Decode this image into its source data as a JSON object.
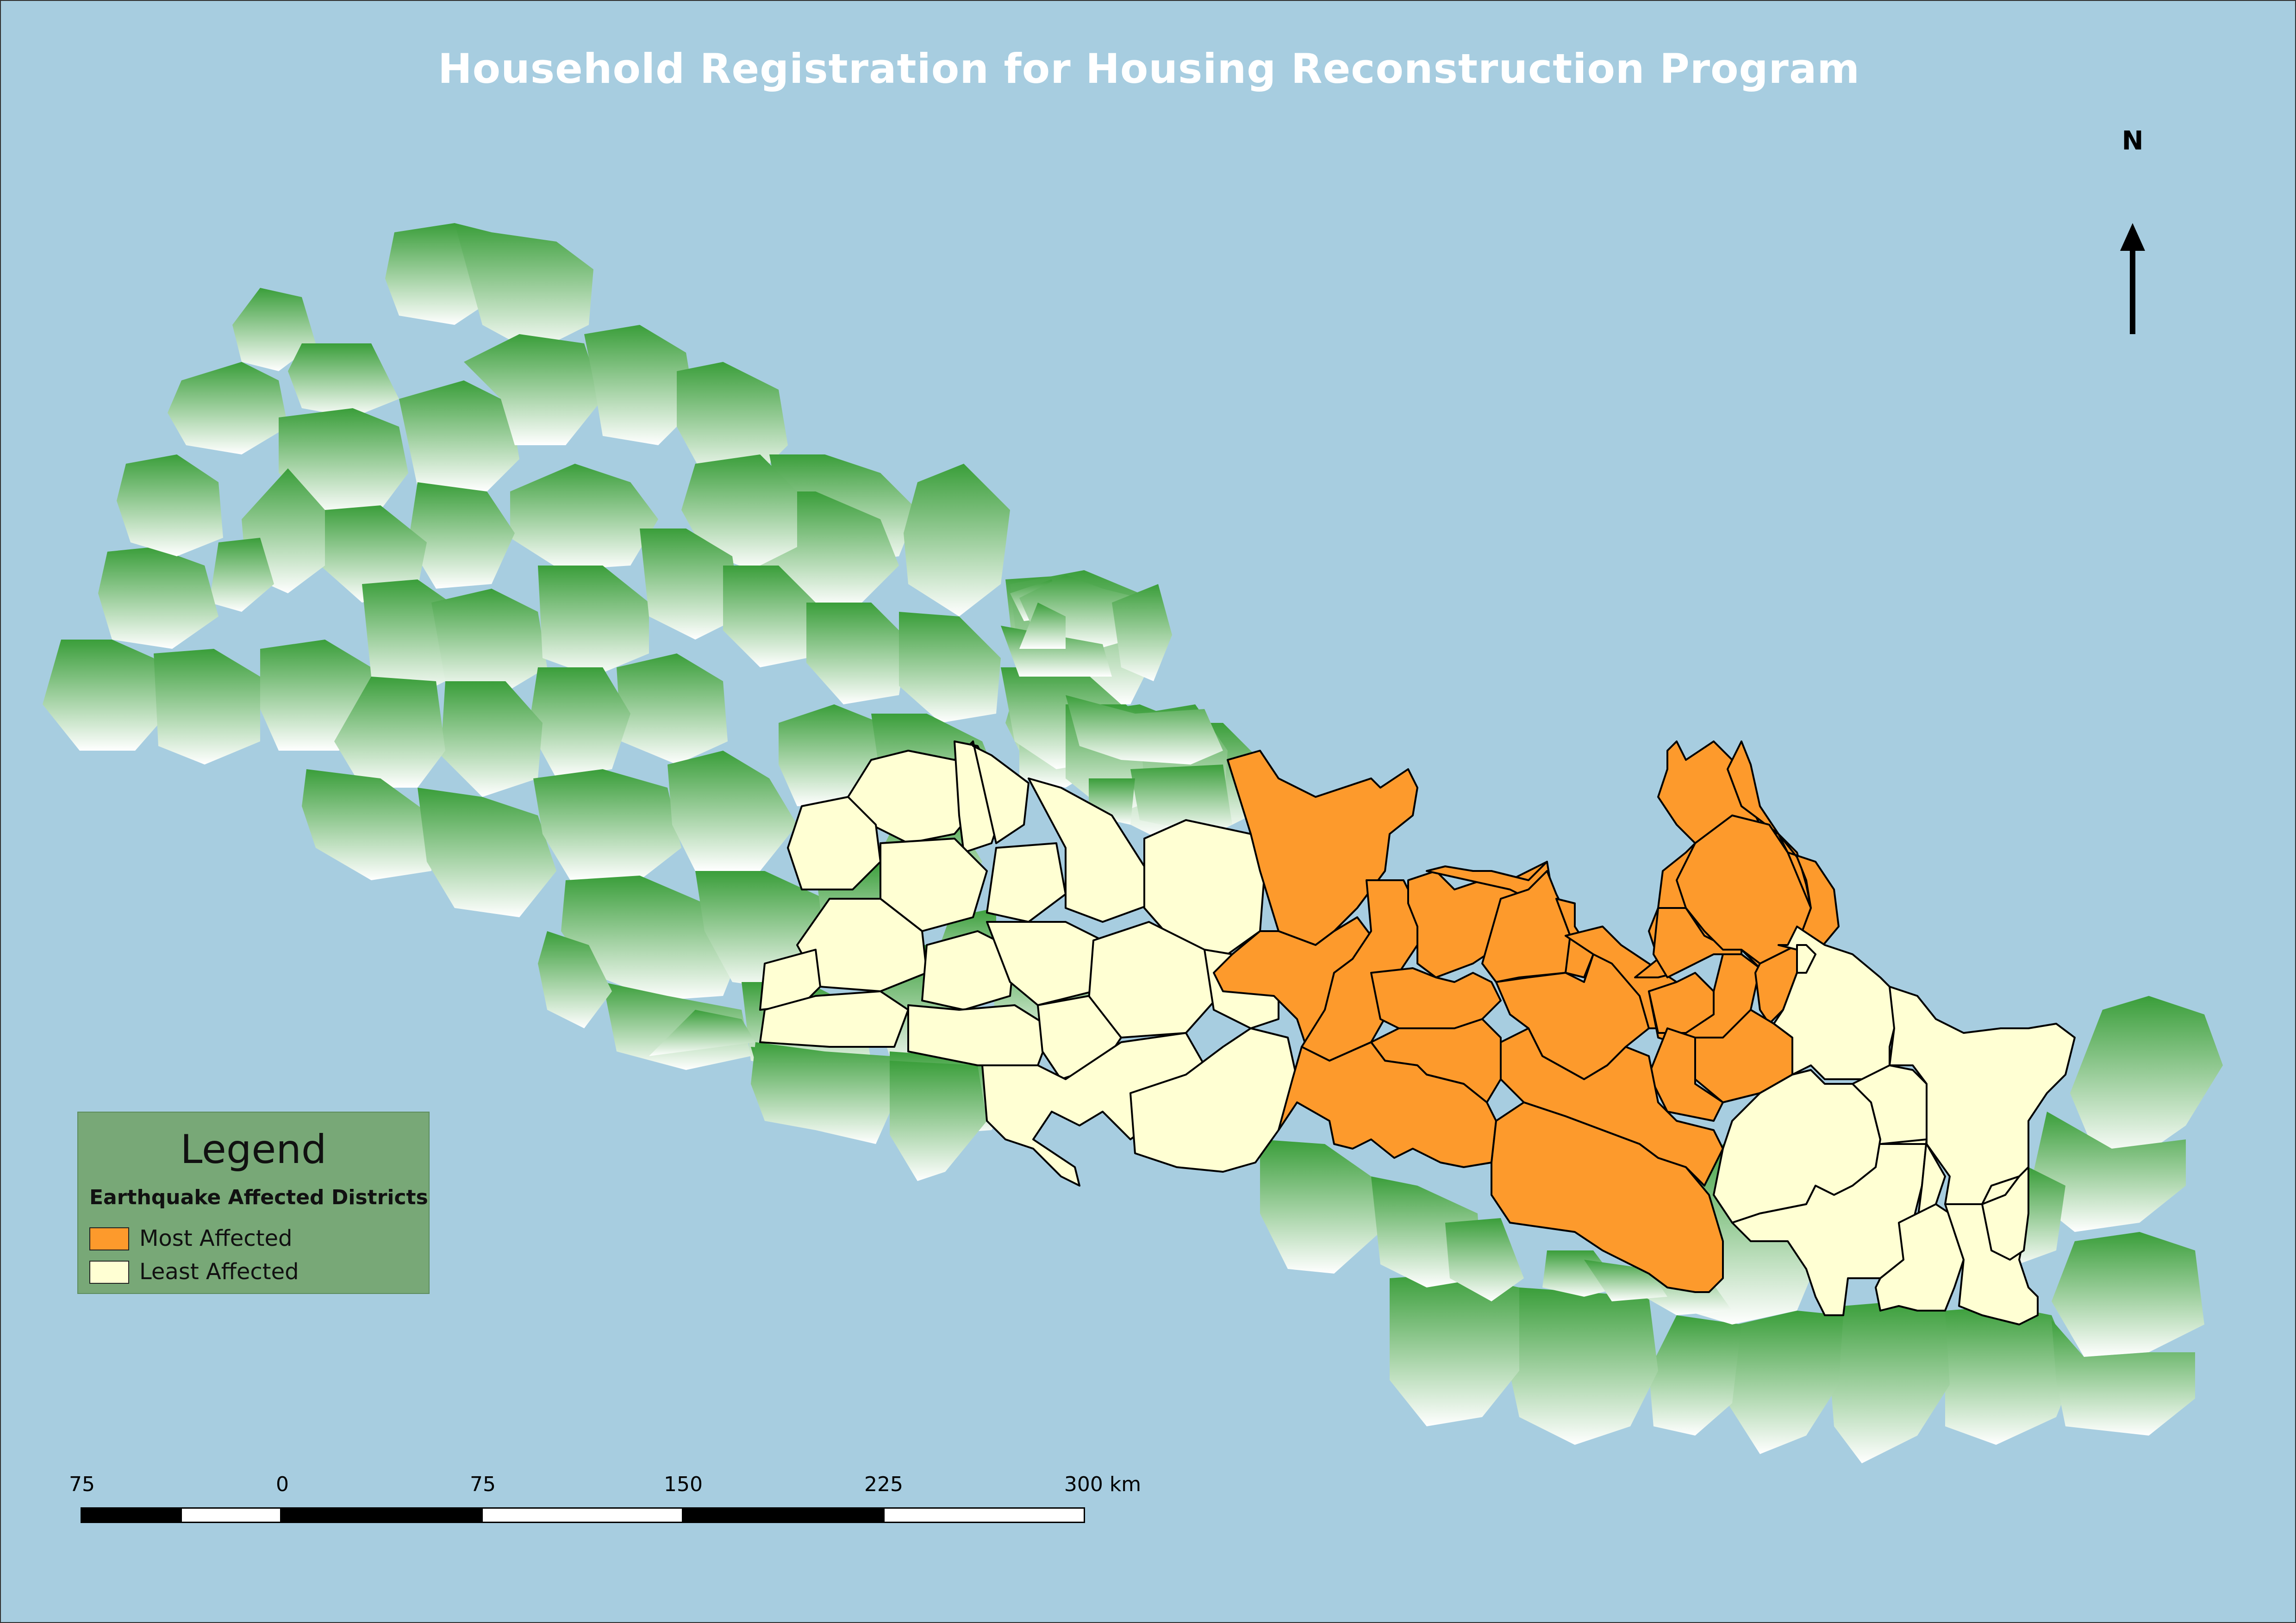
{
  "map": {
    "title": "Household Registration for Housing Reconstruction Program",
    "north_label": "N",
    "colors": {
      "water": "#a7cde0",
      "other_district_dark": "#3a9e3a",
      "other_district_light": "#ffffff",
      "most_affected": "#fd9a2c",
      "least_affected": "#ffffd3",
      "boundary": "#000000",
      "legend_bg": "#78a877"
    }
  },
  "legend": {
    "title": "Legend",
    "subtitle": "Earthquake Affected Districts",
    "items": [
      {
        "label": "Most Affected",
        "color": "#fd9a2c"
      },
      {
        "label": "Least Affected",
        "color": "#ffffd3"
      }
    ]
  },
  "scale_bar": {
    "labels": [
      "75",
      "0",
      "75",
      "150",
      "225",
      "300 km"
    ]
  }
}
